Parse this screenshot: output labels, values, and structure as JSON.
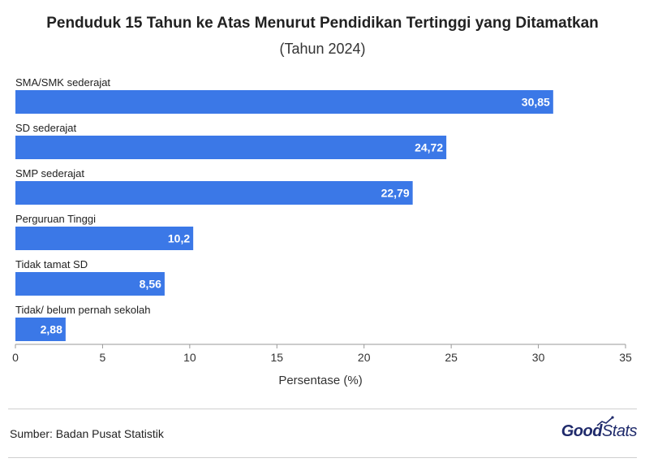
{
  "chart_data": {
    "type": "bar",
    "orientation": "horizontal",
    "title": "Penduduk 15 Tahun ke Atas Menurut Pendidikan Tertinggi yang Ditamatkan",
    "subtitle": "(Tahun 2024)",
    "categories": [
      "SMA/SMK sederajat",
      "SD sederajat",
      "SMP sederajat",
      "Perguruan Tinggi",
      "Tidak tamat SD",
      "Tidak/ belum pernah sekolah"
    ],
    "values": [
      30.85,
      24.72,
      22.79,
      10.2,
      8.56,
      2.88
    ],
    "value_labels": [
      "30,85",
      "24,72",
      "22,79",
      "10,2",
      "8,56",
      "2,88"
    ],
    "xlabel": "Persentase (%)",
    "xlim": [
      0,
      35
    ],
    "xticks": [
      0,
      5,
      10,
      15,
      20,
      25,
      30,
      35
    ],
    "grid": false,
    "bar_color": "#3b78e7"
  },
  "footer": {
    "source": "Sumber: Badan Pusat Statistik",
    "logo_good": "Good",
    "logo_stats": "Stats"
  }
}
